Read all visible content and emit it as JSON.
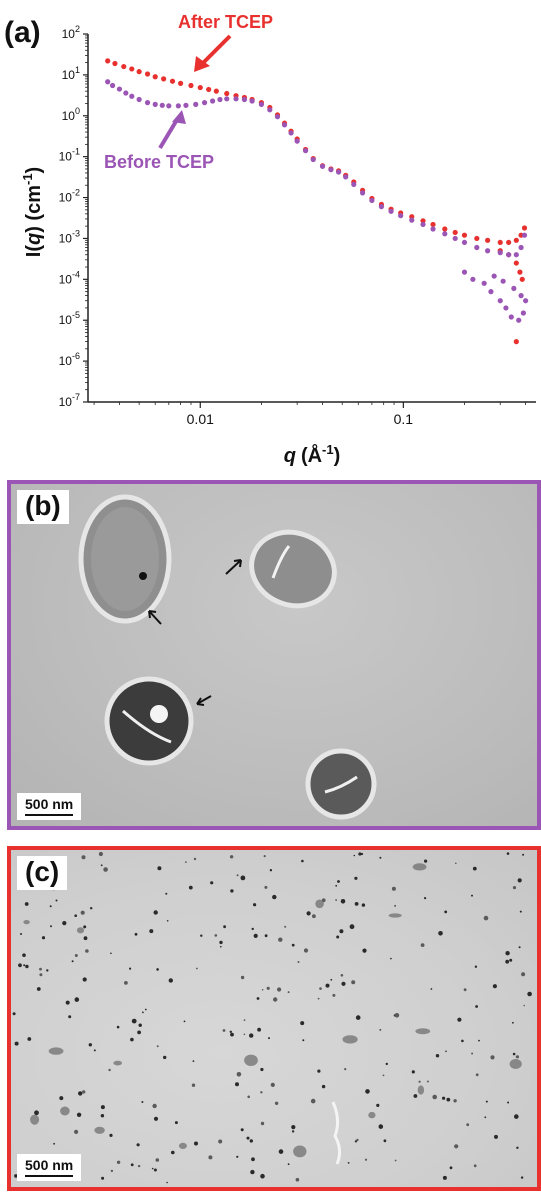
{
  "colors": {
    "after": "#e8312f",
    "before": "#9b55b5",
    "axis": "#222222"
  },
  "chart_data": {
    "type": "scatter",
    "panel_label": "(a)",
    "xlabel_q": "q",
    "xlabel_unit": "(Å",
    "xlabel_exp": "-1",
    "xlabel_close": ")",
    "ylabel_pre": "I(",
    "ylabel_q": "q",
    "ylabel_mid": ") (cm",
    "ylabel_exp": "-1",
    "ylabel_close": ")",
    "x_scale": "log",
    "y_scale": "log",
    "xlim": [
      0.0028,
      0.45
    ],
    "ylim": [
      1e-07,
      100
    ],
    "x_ticks": [
      {
        "value": 0.01,
        "label": "0.01"
      },
      {
        "value": 0.1,
        "label": "0.1"
      }
    ],
    "y_ticks": [
      {
        "value": 100,
        "base": "10",
        "exp": "2"
      },
      {
        "value": 10,
        "base": "10",
        "exp": "1"
      },
      {
        "value": 1,
        "base": "10",
        "exp": "0"
      },
      {
        "value": 0.1,
        "base": "10",
        "exp": "-1"
      },
      {
        "value": 0.01,
        "base": "10",
        "exp": "-2"
      },
      {
        "value": 0.001,
        "base": "10",
        "exp": "-3"
      },
      {
        "value": 0.0001,
        "base": "10",
        "exp": "-4"
      },
      {
        "value": 1e-05,
        "base": "10",
        "exp": "-5"
      },
      {
        "value": 1e-06,
        "base": "10",
        "exp": "-6"
      },
      {
        "value": 1e-07,
        "base": "10",
        "exp": "-7"
      }
    ],
    "grid": false,
    "series": [
      {
        "name": "After TCEP",
        "color": "#e8312f",
        "points": [
          [
            0.0035,
            22
          ],
          [
            0.0038,
            19
          ],
          [
            0.0042,
            16
          ],
          [
            0.0046,
            14
          ],
          [
            0.005,
            12
          ],
          [
            0.0055,
            10.5
          ],
          [
            0.006,
            9
          ],
          [
            0.0066,
            8
          ],
          [
            0.0073,
            7
          ],
          [
            0.008,
            6.2
          ],
          [
            0.009,
            5.5
          ],
          [
            0.01,
            4.9
          ],
          [
            0.011,
            4.4
          ],
          [
            0.012,
            4.0
          ],
          [
            0.0135,
            3.5
          ],
          [
            0.015,
            3.1
          ],
          [
            0.0165,
            2.8
          ],
          [
            0.018,
            2.5
          ],
          [
            0.02,
            2.1
          ],
          [
            0.022,
            1.6
          ],
          [
            0.024,
            1.05
          ],
          [
            0.026,
            0.66
          ],
          [
            0.028,
            0.42
          ],
          [
            0.03,
            0.27
          ],
          [
            0.033,
            0.15
          ],
          [
            0.036,
            0.09
          ],
          [
            0.04,
            0.06
          ],
          [
            0.044,
            0.05
          ],
          [
            0.048,
            0.045
          ],
          [
            0.052,
            0.035
          ],
          [
            0.057,
            0.024
          ],
          [
            0.063,
            0.015
          ],
          [
            0.07,
            0.0095
          ],
          [
            0.078,
            0.0068
          ],
          [
            0.087,
            0.0052
          ],
          [
            0.097,
            0.0042
          ],
          [
            0.11,
            0.0034
          ],
          [
            0.125,
            0.0027
          ],
          [
            0.14,
            0.0022
          ],
          [
            0.16,
            0.0017
          ],
          [
            0.18,
            0.0014
          ],
          [
            0.2,
            0.0012
          ],
          [
            0.23,
            0.001
          ],
          [
            0.26,
            0.0009
          ],
          [
            0.3,
            0.0008
          ],
          [
            0.33,
            0.0008
          ],
          [
            0.36,
            0.0009
          ],
          [
            0.38,
            0.0012
          ],
          [
            0.395,
            0.0018
          ],
          [
            0.3,
            0.0005
          ],
          [
            0.33,
            0.0004
          ],
          [
            0.36,
            0.00025
          ],
          [
            0.375,
            0.00015
          ],
          [
            0.385,
            0.0001
          ],
          [
            0.36,
            3e-06
          ]
        ]
      },
      {
        "name": "Before TCEP",
        "color": "#9b55b5",
        "points": [
          [
            0.0035,
            6.8
          ],
          [
            0.0037,
            5.5
          ],
          [
            0.004,
            4.5
          ],
          [
            0.0043,
            3.6
          ],
          [
            0.0046,
            3.0
          ],
          [
            0.005,
            2.5
          ],
          [
            0.0055,
            2.1
          ],
          [
            0.006,
            1.9
          ],
          [
            0.0065,
            1.8
          ],
          [
            0.007,
            1.75
          ],
          [
            0.0078,
            1.75
          ],
          [
            0.0085,
            1.8
          ],
          [
            0.0095,
            1.9
          ],
          [
            0.0105,
            2.1
          ],
          [
            0.0115,
            2.3
          ],
          [
            0.0125,
            2.5
          ],
          [
            0.0135,
            2.6
          ],
          [
            0.015,
            2.6
          ],
          [
            0.0165,
            2.5
          ],
          [
            0.018,
            2.3
          ],
          [
            0.02,
            1.9
          ],
          [
            0.022,
            1.4
          ],
          [
            0.024,
            0.95
          ],
          [
            0.026,
            0.6
          ],
          [
            0.028,
            0.38
          ],
          [
            0.03,
            0.24
          ],
          [
            0.033,
            0.14
          ],
          [
            0.036,
            0.085
          ],
          [
            0.04,
            0.058
          ],
          [
            0.044,
            0.048
          ],
          [
            0.048,
            0.042
          ],
          [
            0.052,
            0.032
          ],
          [
            0.057,
            0.021
          ],
          [
            0.063,
            0.013
          ],
          [
            0.07,
            0.0085
          ],
          [
            0.078,
            0.006
          ],
          [
            0.087,
            0.0046
          ],
          [
            0.097,
            0.0036
          ],
          [
            0.11,
            0.0028
          ],
          [
            0.125,
            0.0022
          ],
          [
            0.14,
            0.0017
          ],
          [
            0.16,
            0.0013
          ],
          [
            0.18,
            0.001
          ],
          [
            0.2,
            0.0008
          ],
          [
            0.23,
            0.0006
          ],
          [
            0.26,
            0.0005
          ],
          [
            0.3,
            0.00045
          ],
          [
            0.33,
            0.0004
          ],
          [
            0.36,
            0.0004
          ],
          [
            0.38,
            0.0006
          ],
          [
            0.395,
            0.0012
          ],
          [
            0.2,
            0.00015
          ],
          [
            0.22,
            0.0001
          ],
          [
            0.25,
            8e-05
          ],
          [
            0.27,
            5e-05
          ],
          [
            0.3,
            3e-05
          ],
          [
            0.32,
            2e-05
          ],
          [
            0.34,
            1.2e-05
          ],
          [
            0.37,
            1e-05
          ],
          [
            0.39,
            1.5e-05
          ],
          [
            0.4,
            3e-05
          ],
          [
            0.28,
            0.00012
          ],
          [
            0.31,
            9e-05
          ],
          [
            0.35,
            6e-05
          ],
          [
            0.38,
            4e-05
          ]
        ]
      }
    ],
    "annotations": [
      {
        "text": "After TCEP",
        "color": "#e8312f"
      },
      {
        "text": "Before TCEP",
        "color": "#9b55b5"
      }
    ]
  },
  "panel_b": {
    "label": "(b)",
    "scale_bar": "500 nm",
    "border_color": "#9b55b5"
  },
  "panel_c": {
    "label": "(c)",
    "scale_bar": "500 nm",
    "border_color": "#e8312f"
  }
}
